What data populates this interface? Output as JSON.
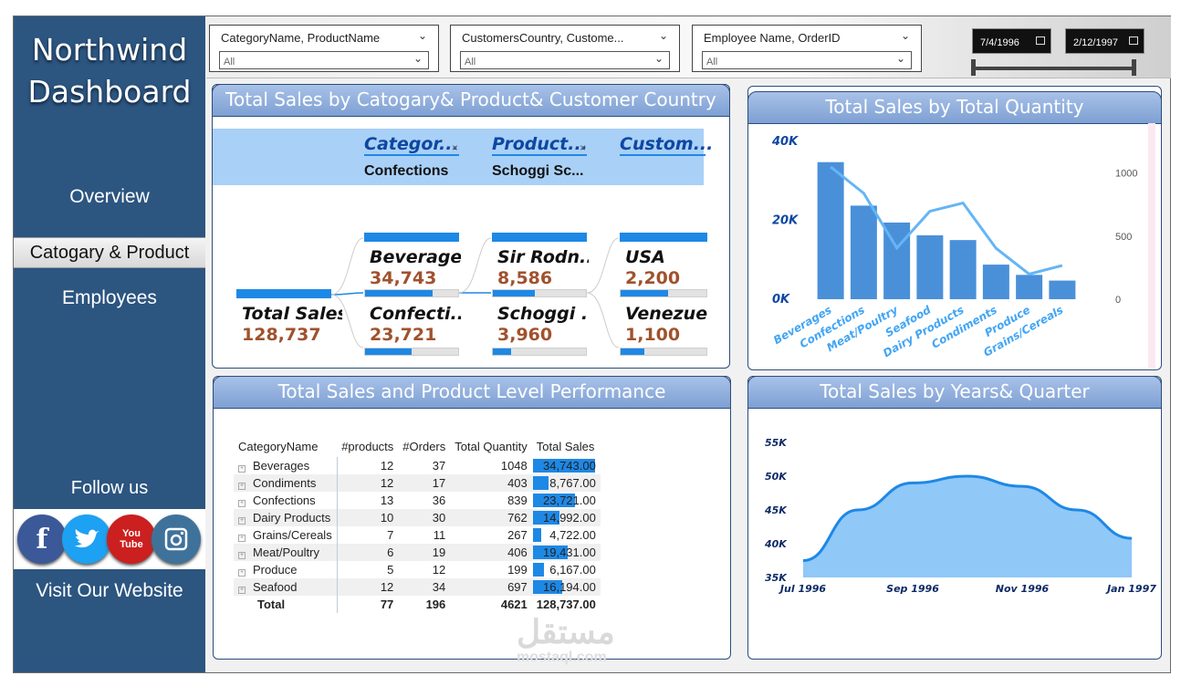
{
  "app": {
    "title_line1": "Northwind",
    "title_line2": "Dashboard"
  },
  "nav": {
    "items": [
      "Overview",
      "Catogary & Product",
      "Employees"
    ],
    "active": "Catogary & Product"
  },
  "social": {
    "follow_label": "Follow us",
    "icons": [
      "facebook-icon",
      "twitter-icon",
      "youtube-icon",
      "instagram-icon"
    ],
    "youtube_text": "You Tube",
    "visit_label": "Visit Our Website"
  },
  "filters": {
    "slicers": [
      {
        "title": "CategoryName, ProductName",
        "value": "All"
      },
      {
        "title": "CustomersCountry, Custome...",
        "value": "All"
      },
      {
        "title": "Employee Name, OrderID",
        "value": "All"
      }
    ],
    "date_start": "7/4/1996",
    "date_end": "2/12/1997"
  },
  "decomp": {
    "title": "Total Sales by Catogary& Product& Customer Country",
    "columns": [
      {
        "header": "Categor...",
        "selected": "Confections"
      },
      {
        "header": "Product...",
        "selected": "Schoggi Sc..."
      },
      {
        "header": "Custom...",
        "selected": ""
      }
    ],
    "root": {
      "label": "Total Sales",
      "value": "128,737"
    },
    "level1": [
      {
        "name": "Beverages",
        "value": "34,743",
        "fill": 0.73
      },
      {
        "name": "Confecti...",
        "value": "23,721",
        "fill": 0.5
      }
    ],
    "level2": [
      {
        "name": "Sir Rodn...",
        "value": "8,586",
        "fill": 0.45
      },
      {
        "name": "Schoggi ...",
        "value": "3,960",
        "fill": 0.2
      }
    ],
    "level3": [
      {
        "name": "USA",
        "value": "2,200",
        "fill": 0.55
      },
      {
        "name": "Venezuela",
        "value": "1,100",
        "fill": 0.28
      }
    ]
  },
  "qty_chart": {
    "title": "Total Sales by Total Quantity",
    "chart_data": {
      "type": "bar",
      "categories": [
        "Beverages",
        "Confections",
        "Meat/Poultry",
        "Seafood",
        "Dairy Products",
        "Condiments",
        "Produce",
        "Grains/Cereals"
      ],
      "series": [
        {
          "values": [
            34743,
            23721,
            19431,
            16194,
            14992,
            8767,
            6167,
            4722
          ]
        },
        {
          "values": [
            1048,
            839,
            406,
            697,
            762,
            403,
            199,
            267
          ]
        }
      ],
      "y_ticks": [
        "40K",
        "20K",
        "0K"
      ],
      "y2_ticks": [
        "1000",
        "500",
        "0"
      ],
      "ylim": [
        0,
        40000
      ],
      "y2lim": [
        0,
        1250
      ]
    }
  },
  "matrix": {
    "title": "Total Sales and Product Level Performance",
    "headers": [
      "CategoryName",
      "#products",
      "#Orders",
      "Total Quantity",
      "Total Sales"
    ],
    "rows": [
      [
        "Beverages",
        "12",
        "37",
        "1048",
        "34,743.00"
      ],
      [
        "Condiments",
        "12",
        "17",
        "403",
        "8,767.00"
      ],
      [
        "Confections",
        "13",
        "36",
        "839",
        "23,721.00"
      ],
      [
        "Dairy Products",
        "10",
        "30",
        "762",
        "14,992.00"
      ],
      [
        "Grains/Cereals",
        "7",
        "11",
        "267",
        "4,722.00"
      ],
      [
        "Meat/Poultry",
        "6",
        "19",
        "406",
        "19,431.00"
      ],
      [
        "Produce",
        "5",
        "12",
        "199",
        "6,167.00"
      ],
      [
        "Seafood",
        "12",
        "34",
        "697",
        "16,194.00"
      ]
    ],
    "sales_fill": [
      1.0,
      0.25,
      0.68,
      0.43,
      0.14,
      0.56,
      0.18,
      0.47
    ],
    "total": [
      "Total",
      "77",
      "196",
      "4621",
      "128,737.00"
    ]
  },
  "area_chart": {
    "title": "Total Sales by Years& Quarter",
    "chart_data": {
      "type": "area",
      "x": [
        "Jul 1996",
        "Aug 1996",
        "Sep 1996",
        "Oct 1996",
        "Nov 1996",
        "Dec 1996",
        "Jan 1997"
      ],
      "values": [
        37500,
        45000,
        49000,
        50000,
        48500,
        45000,
        40800
      ],
      "y_ticks": [
        "55K",
        "50K",
        "45K",
        "40K",
        "35K"
      ],
      "x_tick_labels": [
        "Jul 1996",
        "Sep 1996",
        "Nov 1996",
        "Jan 1997"
      ],
      "ylim": [
        35000,
        55000
      ]
    }
  },
  "watermark": {
    "arabic": "مستقل",
    "latin": "mostaql.com"
  },
  "colors": {
    "sidebar": "#2c5580",
    "accent": "#1e88e5",
    "bars": "#4a90d9",
    "line": "#64b5f6",
    "value_text": "#a0522d"
  }
}
